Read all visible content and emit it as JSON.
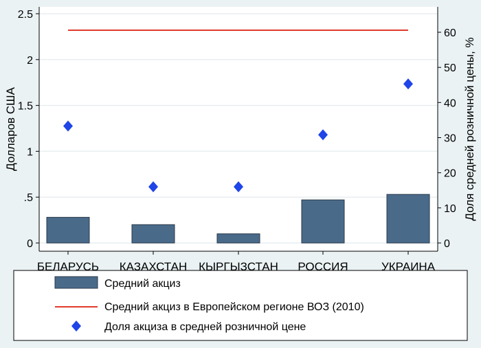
{
  "chart_data": {
    "type": "bar",
    "categories": [
      "БЕЛАРУСЬ",
      "КАЗАХСТАН",
      "КЫРГЫЗСТАН",
      "РОССИЯ",
      "УКРАИНА"
    ],
    "series": [
      {
        "name": "Средний акциз",
        "type": "bar",
        "axis": "left",
        "color": "#4a6a8a",
        "values": [
          0.28,
          0.2,
          0.1,
          0.47,
          0.53
        ]
      },
      {
        "name": "Средний акциз в Европейском регионе ВОЗ (2010)",
        "type": "line",
        "axis": "left",
        "color": "#e03a2a",
        "values": [
          2.32,
          2.32,
          2.32,
          2.32,
          2.32
        ]
      },
      {
        "name": "Доля  акциза в средней розничной цене",
        "type": "scatter",
        "axis": "right",
        "color": "#1f45e8",
        "values": [
          33.3,
          16.0,
          16.0,
          30.8,
          45.3
        ]
      }
    ],
    "ylabel": "Долларов США",
    "y2label": "Доля средней розничной цены, %",
    "ylim": [
      0,
      2.5
    ],
    "y2lim": [
      0,
      65
    ],
    "yticks": [
      0,
      0.5,
      1,
      1.5,
      2,
      2.5
    ],
    "ytick_labels": [
      "0",
      ".5",
      "1",
      "1.5",
      "2",
      "2.5"
    ],
    "y2ticks": [
      0,
      10,
      20,
      30,
      40,
      50,
      60
    ],
    "y2tick_labels": [
      "0",
      "10",
      "20",
      "30",
      "40",
      "50",
      "60"
    ],
    "grid": true,
    "legend_position": "bottom"
  }
}
